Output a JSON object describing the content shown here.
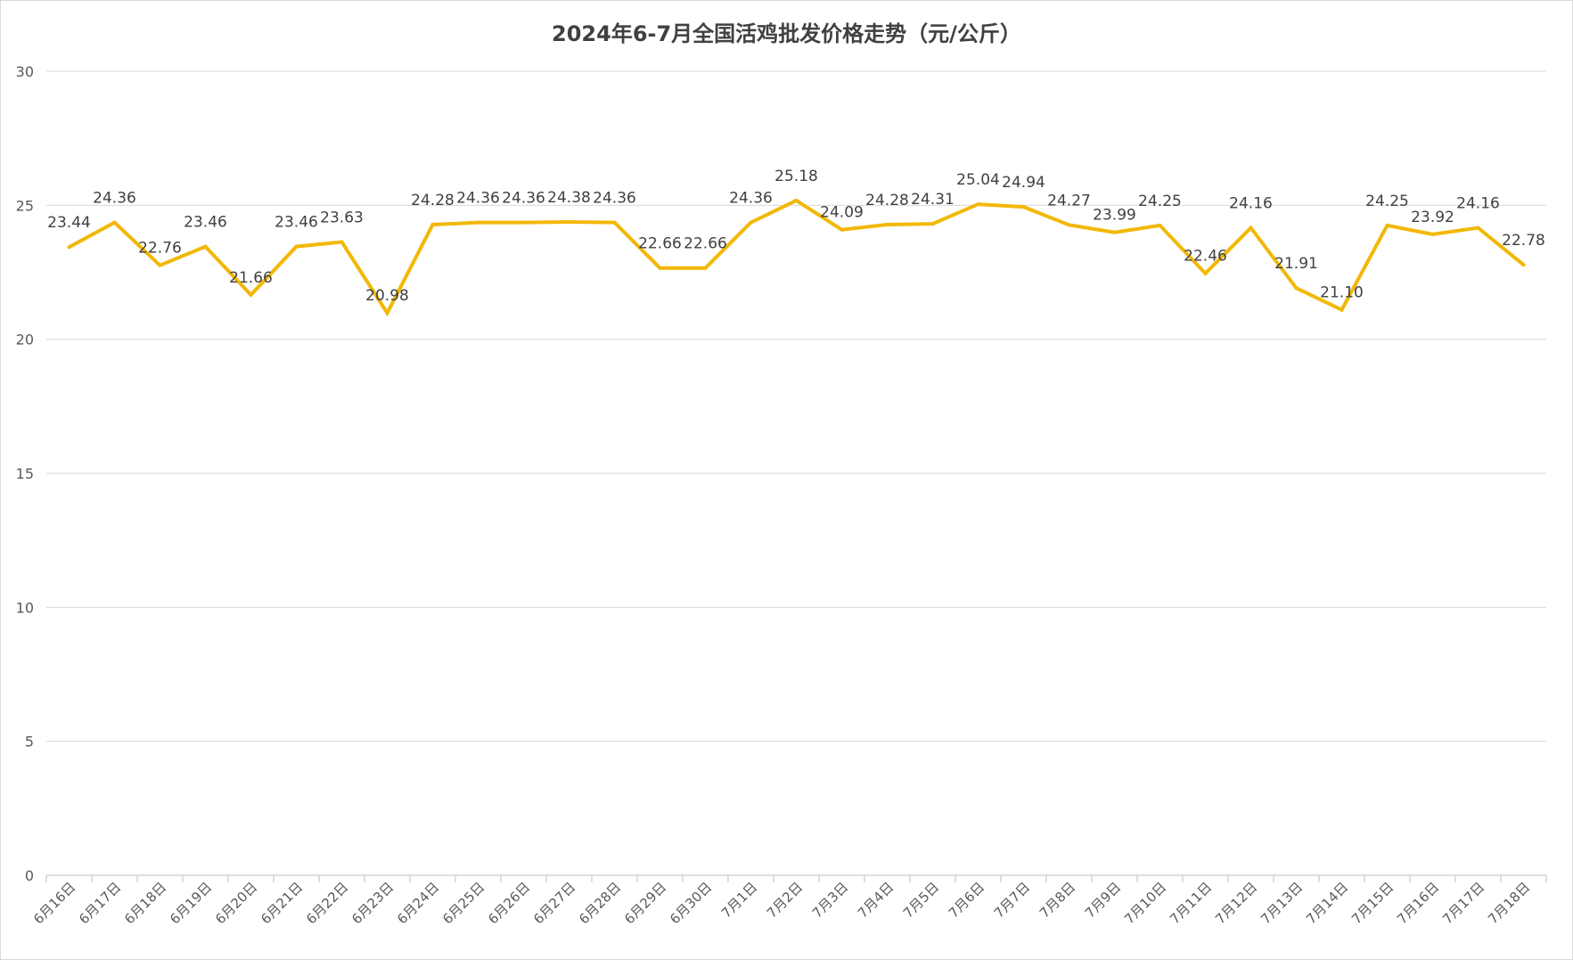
{
  "chart_data": {
    "type": "line",
    "title": "2024年6-7月全国活鸡批发价格走势（元/公斤）",
    "xlabel": "",
    "ylabel": "",
    "ylim": [
      0,
      30
    ],
    "yticks": [
      "0",
      "5",
      "10",
      "15",
      "20",
      "25",
      "30"
    ],
    "grid": "horizontal",
    "legend": "none",
    "line_color": "#F2B807",
    "categories": [
      "6月16日",
      "6月17日",
      "6月18日",
      "6月19日",
      "6月20日",
      "6月21日",
      "6月22日",
      "6月23日",
      "6月24日",
      "6月25日",
      "6月26日",
      "6月27日",
      "6月28日",
      "6月29日",
      "6月30日",
      "7月1日",
      "7月2日",
      "7月3日",
      "7月4日",
      "7月5日",
      "7月6日",
      "7月7日",
      "7月8日",
      "7月9日",
      "7月10日",
      "7月11日",
      "7月12日",
      "7月13日",
      "7月14日",
      "7月15日",
      "7月16日",
      "7月17日",
      "7月18日"
    ],
    "values": [
      23.44,
      24.36,
      22.76,
      23.46,
      21.66,
      23.46,
      23.63,
      20.98,
      24.28,
      24.36,
      24.36,
      24.38,
      24.36,
      22.66,
      22.66,
      24.36,
      25.18,
      24.09,
      24.28,
      24.31,
      25.04,
      24.94,
      24.27,
      23.99,
      24.25,
      22.46,
      24.16,
      21.91,
      21.1,
      24.25,
      23.92,
      24.16,
      22.78
    ],
    "labels": [
      "23.44",
      "24.36",
      "22.76",
      "23.46",
      "21.66",
      "23.46",
      "23.63",
      "20.98",
      "24.28",
      "24.36",
      "24.36",
      "24.38",
      "24.36",
      "22.66",
      "22.66",
      "24.36",
      "25.18",
      "24.09",
      "24.28",
      "24.31",
      "25.04",
      "24.94",
      "24.27",
      "23.99",
      "24.25",
      "22.46",
      "24.16",
      "21.91",
      "21.10",
      "24.25",
      "23.92",
      "24.16",
      "22.78"
    ]
  }
}
